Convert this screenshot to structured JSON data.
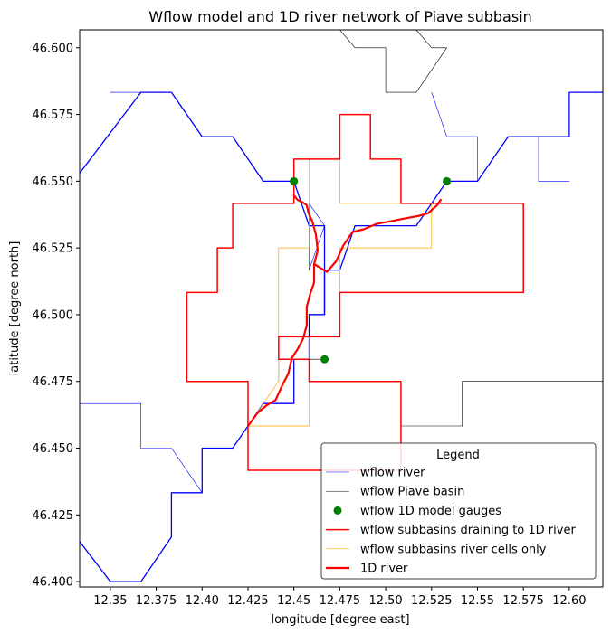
{
  "chart_data": {
    "type": "line",
    "title": "Wflow model and 1D river network of Piave subbasin",
    "xlabel": "longitude [degree east]",
    "ylabel": "latitude [degree north]",
    "xlim": [
      12.3333,
      12.6183
    ],
    "ylim": [
      46.398,
      46.6067
    ],
    "xticks": [
      12.35,
      12.375,
      12.4,
      12.425,
      12.45,
      12.475,
      12.5,
      12.525,
      12.55,
      12.575,
      12.6
    ],
    "xtick_labels": [
      "12.35",
      "12.375",
      "12.40",
      "12.425",
      "12.45",
      "12.475",
      "12.50",
      "12.525",
      "12.55",
      "12.575",
      "12.60"
    ],
    "yticks": [
      46.4,
      46.425,
      46.45,
      46.475,
      46.5,
      46.525,
      46.55,
      46.575,
      46.6
    ],
    "ytick_labels": [
      "46.400",
      "46.425",
      "46.450",
      "46.475",
      "46.500",
      "46.525",
      "46.550",
      "46.575",
      "46.600"
    ],
    "grid": false,
    "legend": {
      "title": "Legend",
      "placement": "lower-right",
      "entries": [
        {
          "label": " wflow river",
          "kind": "line",
          "color": "#0000ff",
          "width": 0.6
        },
        {
          "label": "wflow Piave basin",
          "kind": "line",
          "color": "#000000",
          "width": 0.5
        },
        {
          "label": "wflow 1D model gauges",
          "kind": "marker",
          "color": "#008000"
        },
        {
          "label": "wflow subbasins draining to 1D river",
          "kind": "line",
          "color": "#ff0000",
          "width": 1.5
        },
        {
          "label": "wflow subbasins river cells only",
          "kind": "line",
          "color": "#ffa500",
          "width": 0.6
        },
        {
          "label": "1D river",
          "kind": "line",
          "color": "#ff0000",
          "width": 2.2
        }
      ]
    },
    "series": [
      {
        "kind": "basin",
        "color": "#000000",
        "width": 0.6,
        "points": [
          [
            12.475,
            46.6067
          ],
          [
            12.4833,
            46.6
          ],
          [
            12.5,
            46.6
          ],
          [
            12.5,
            46.5833
          ],
          [
            12.5167,
            46.5833
          ],
          [
            12.5333,
            46.6
          ],
          [
            12.525,
            46.6
          ],
          [
            12.5167,
            46.6067
          ]
        ]
      },
      {
        "kind": "basin",
        "color": "#000000",
        "width": 0.6,
        "points": [
          [
            12.5083,
            46.4583
          ],
          [
            12.5417,
            46.4583
          ],
          [
            12.5417,
            46.475
          ],
          [
            12.6183,
            46.475
          ]
        ]
      },
      {
        "kind": "basin",
        "color": "#000000",
        "width": 0.6,
        "points": [
          [
            12.4417,
            46.475
          ],
          [
            12.4417,
            46.4833
          ],
          [
            12.4667,
            46.4833
          ]
        ]
      },
      {
        "kind": "river",
        "color": "#0000ff",
        "width": 1.3,
        "points": [
          [
            12.3333,
            46.415
          ],
          [
            12.35,
            46.4
          ],
          [
            12.3667,
            46.4
          ],
          [
            12.3833,
            46.4167
          ],
          [
            12.3833,
            46.4333
          ],
          [
            12.4,
            46.4333
          ],
          [
            12.4,
            46.45
          ],
          [
            12.4167,
            46.45
          ],
          [
            12.425,
            46.4583
          ],
          [
            12.4333,
            46.4667
          ],
          [
            12.4417,
            46.4667
          ],
          [
            12.45,
            46.4667
          ],
          [
            12.45,
            46.4833
          ],
          [
            12.4583,
            46.4833
          ],
          [
            12.4583,
            46.5
          ],
          [
            12.4667,
            46.5
          ],
          [
            12.4667,
            46.5167
          ],
          [
            12.475,
            46.5167
          ],
          [
            12.4833,
            46.5333
          ],
          [
            12.5,
            46.5333
          ],
          [
            12.5167,
            46.5333
          ],
          [
            12.5333,
            46.55
          ],
          [
            12.55,
            46.55
          ],
          [
            12.5667,
            46.5667
          ],
          [
            12.5833,
            46.5667
          ],
          [
            12.6,
            46.5667
          ],
          [
            12.6,
            46.5833
          ],
          [
            12.6183,
            46.5833
          ]
        ]
      },
      {
        "kind": "river",
        "color": "#0000ff",
        "width": 1.3,
        "points": [
          [
            12.4583,
            46.5
          ],
          [
            12.4667,
            46.5
          ],
          [
            12.4667,
            46.5333
          ],
          [
            12.4583,
            46.5333
          ],
          [
            12.45,
            46.55
          ],
          [
            12.4333,
            46.55
          ],
          [
            12.4167,
            46.5667
          ],
          [
            12.4,
            46.5667
          ],
          [
            12.3833,
            46.5833
          ],
          [
            12.3667,
            46.5833
          ],
          [
            12.3333,
            46.553
          ]
        ]
      },
      {
        "kind": "river",
        "color": "#0000ff",
        "width": 0.6,
        "points": [
          [
            12.35,
            46.5833
          ],
          [
            12.3667,
            46.5833
          ]
        ]
      },
      {
        "kind": "river",
        "color": "#0000ff",
        "width": 0.6,
        "points": [
          [
            12.5333,
            46.55
          ],
          [
            12.55,
            46.55
          ],
          [
            12.55,
            46.5667
          ],
          [
            12.5333,
            46.5667
          ],
          [
            12.525,
            46.5833
          ]
        ]
      },
      {
        "kind": "river",
        "color": "#0000ff",
        "width": 0.6,
        "points": [
          [
            12.5833,
            46.5667
          ],
          [
            12.5833,
            46.55
          ],
          [
            12.6,
            46.55
          ]
        ]
      },
      {
        "kind": "river",
        "color": "#0000ff",
        "width": 0.6,
        "points": [
          [
            12.3333,
            46.4667
          ],
          [
            12.3667,
            46.4667
          ],
          [
            12.3667,
            46.45
          ],
          [
            12.3833,
            46.45
          ],
          [
            12.4,
            46.4333
          ]
        ]
      },
      {
        "kind": "river",
        "color": "#0000ff",
        "width": 0.6,
        "points": [
          [
            12.4583,
            46.5167
          ],
          [
            12.4667,
            46.5333
          ],
          [
            12.4583,
            46.5417
          ],
          [
            12.4583,
            46.5167
          ]
        ]
      },
      {
        "kind": "subbasin",
        "color": "#ff0000",
        "width": 1.5,
        "points": [
          [
            12.425,
            46.4417
          ],
          [
            12.425,
            46.475
          ],
          [
            12.3917,
            46.475
          ],
          [
            12.3917,
            46.5083
          ],
          [
            12.4083,
            46.5083
          ],
          [
            12.4083,
            46.525
          ],
          [
            12.4167,
            46.525
          ],
          [
            12.4167,
            46.5417
          ],
          [
            12.4333,
            46.5417
          ],
          [
            12.45,
            46.5417
          ],
          [
            12.45,
            46.5583
          ],
          [
            12.4583,
            46.5583
          ],
          [
            12.475,
            46.5583
          ],
          [
            12.475,
            46.575
          ],
          [
            12.4917,
            46.575
          ],
          [
            12.4917,
            46.5583
          ],
          [
            12.5083,
            46.5583
          ],
          [
            12.5083,
            46.5417
          ],
          [
            12.575,
            46.5417
          ],
          [
            12.575,
            46.5083
          ],
          [
            12.475,
            46.5083
          ],
          [
            12.475,
            46.4917
          ],
          [
            12.4417,
            46.4917
          ],
          [
            12.4417,
            46.4833
          ],
          [
            12.4583,
            46.4833
          ],
          [
            12.4583,
            46.475
          ],
          [
            12.5083,
            46.475
          ],
          [
            12.5083,
            46.4417
          ],
          [
            12.425,
            46.4417
          ]
        ]
      },
      {
        "kind": "subbasin-river-cells",
        "color": "#ffa500",
        "width": 0.7,
        "points": [
          [
            12.425,
            46.4583
          ],
          [
            12.4583,
            46.4583
          ],
          [
            12.4583,
            46.4917
          ],
          [
            12.475,
            46.4917
          ],
          [
            12.475,
            46.525
          ],
          [
            12.525,
            46.525
          ],
          [
            12.525,
            46.5417
          ],
          [
            12.475,
            46.5417
          ],
          [
            12.475,
            46.5583
          ],
          [
            12.4583,
            46.5583
          ],
          [
            12.4583,
            46.525
          ],
          [
            12.4417,
            46.525
          ],
          [
            12.4417,
            46.475
          ],
          [
            12.425,
            46.4583
          ]
        ]
      },
      {
        "kind": "1d-river",
        "color": "#ff0000",
        "width": 2.2,
        "points": [
          [
            12.425,
            46.4583
          ],
          [
            12.43,
            46.463
          ],
          [
            12.435,
            46.466
          ],
          [
            12.44,
            46.468
          ],
          [
            12.444,
            46.474
          ],
          [
            12.447,
            46.478
          ],
          [
            12.449,
            46.484
          ],
          [
            12.452,
            46.487
          ],
          [
            12.455,
            46.491
          ],
          [
            12.457,
            46.496
          ],
          [
            12.457,
            46.503
          ],
          [
            12.459,
            46.508
          ],
          [
            12.461,
            46.512
          ],
          [
            12.461,
            46.519
          ],
          [
            12.463,
            46.524
          ],
          [
            12.462,
            46.53
          ],
          [
            12.46,
            46.535
          ],
          [
            12.458,
            46.538
          ],
          [
            12.457,
            46.541
          ],
          [
            12.455,
            46.542
          ],
          [
            12.452,
            46.543
          ],
          [
            12.45,
            46.5447
          ]
        ]
      },
      {
        "kind": "1d-river",
        "color": "#ff0000",
        "width": 2.2,
        "points": [
          [
            12.461,
            46.519
          ],
          [
            12.468,
            46.516
          ],
          [
            12.473,
            46.52
          ],
          [
            12.477,
            46.526
          ],
          [
            12.482,
            46.531
          ],
          [
            12.488,
            46.532
          ],
          [
            12.495,
            46.534
          ],
          [
            12.503,
            46.535
          ],
          [
            12.51,
            46.536
          ],
          [
            12.518,
            46.537
          ],
          [
            12.523,
            46.538
          ],
          [
            12.528,
            46.541
          ],
          [
            12.53,
            46.543
          ]
        ]
      }
    ],
    "gauges": [
      [
        12.45,
        46.55
      ],
      [
        12.5333,
        46.55
      ],
      [
        12.4667,
        46.4833
      ]
    ]
  }
}
